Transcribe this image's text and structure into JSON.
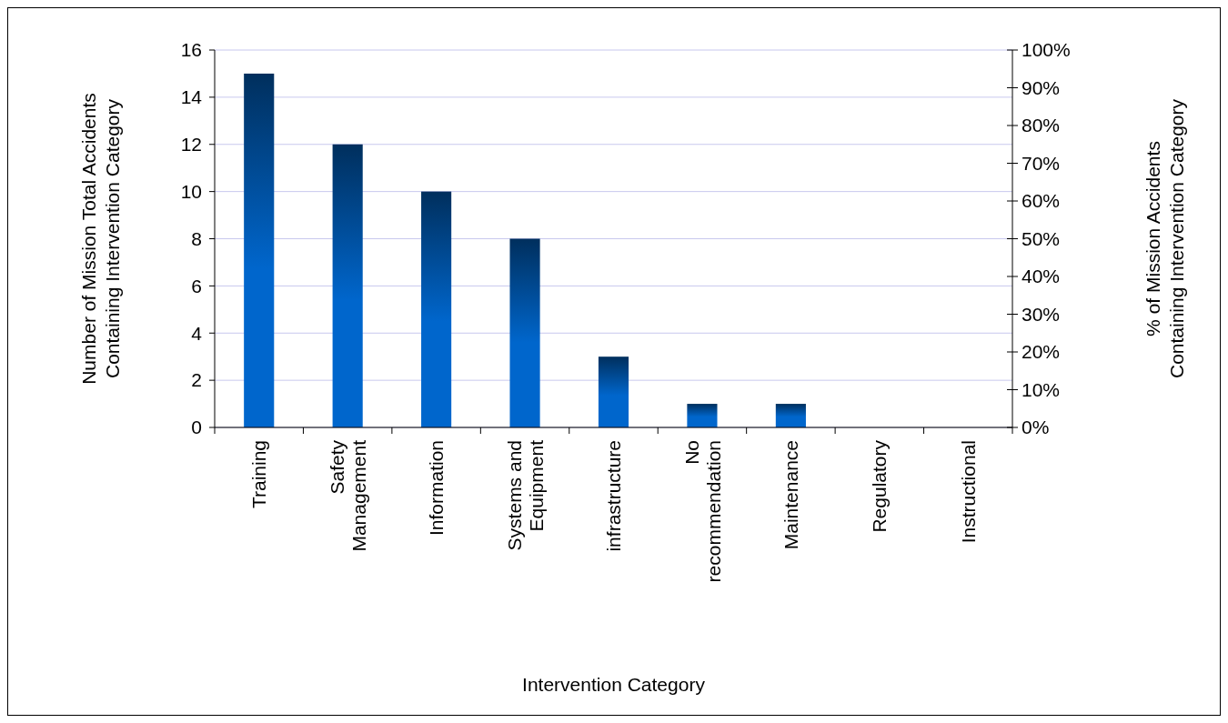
{
  "chart_data": {
    "type": "bar",
    "xlabel": "Intervention Category",
    "ylabel": "Number of Mission Total Accidents Containing Intervention Category",
    "y2label": "% of Mission Accidents Containing Intervention Category",
    "categories": [
      "Training",
      "Safety Management",
      "Information",
      "Systems and Equipment",
      "infrastructure",
      "No recommendation",
      "Maintenance",
      "Regulatory",
      "Instructional"
    ],
    "series": [
      {
        "color": "#0066cc",
        "values": [
          15,
          12,
          10,
          8,
          3,
          1,
          1,
          0,
          0
        ]
      }
    ],
    "ylim": [
      0,
      16
    ],
    "yticks": [
      0,
      2,
      4,
      6,
      8,
      10,
      12,
      14,
      16
    ],
    "y2lim": [
      0,
      100
    ],
    "y2ticks": [
      {
        "value": 0,
        "label": "0%"
      },
      {
        "value": 10,
        "label": "10%"
      },
      {
        "value": 20,
        "label": "20%"
      },
      {
        "value": 30,
        "label": "30%"
      },
      {
        "value": 40,
        "label": "40%"
      },
      {
        "value": 50,
        "label": "50%"
      },
      {
        "value": 60,
        "label": "60%"
      },
      {
        "value": 70,
        "label": "70%"
      },
      {
        "value": 80,
        "label": "80%"
      },
      {
        "value": 90,
        "label": "90%"
      },
      {
        "value": 100,
        "label": "100%"
      }
    ],
    "grid": "y"
  }
}
